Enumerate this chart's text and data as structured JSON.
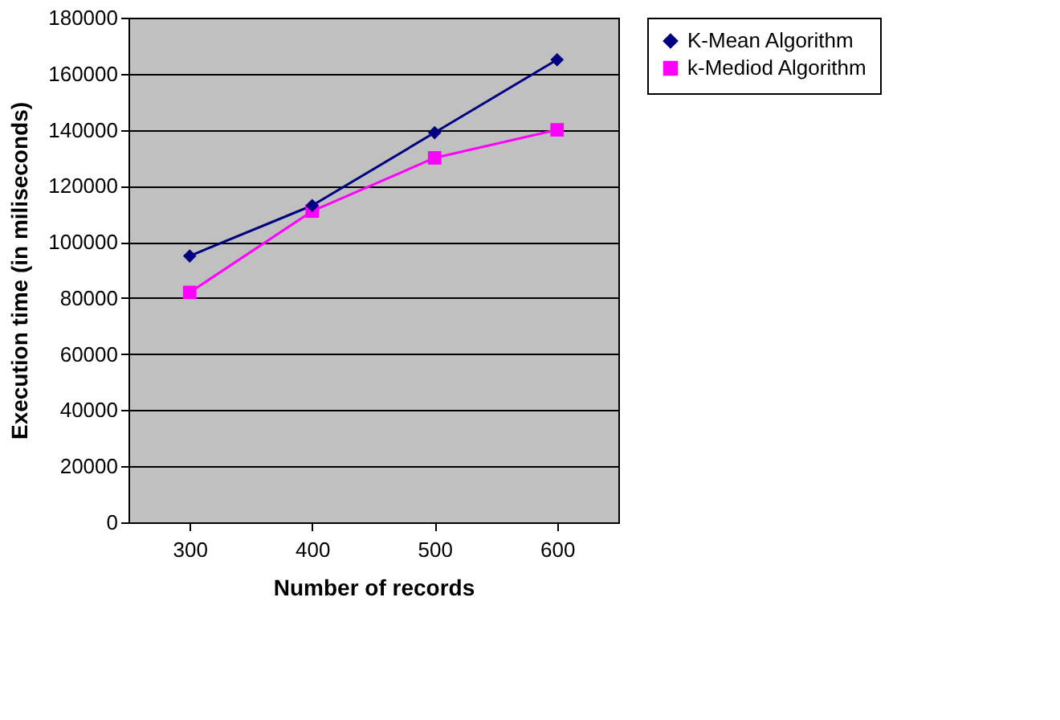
{
  "chart_data": {
    "type": "line",
    "xlabel": "Number of records",
    "ylabel": "Execution time (in miliseconds)",
    "categories": [
      "300",
      "400",
      "500",
      "600"
    ],
    "series": [
      {
        "name": "K-Mean Algorithm",
        "color": "#000080",
        "marker": "diamond",
        "values": [
          95000,
          113000,
          139000,
          165000
        ]
      },
      {
        "name": "k-Mediod Algorithm",
        "color": "#ff00ff",
        "marker": "square",
        "values": [
          82000,
          111000,
          130000,
          140000
        ]
      }
    ],
    "ylim": [
      0,
      180000
    ],
    "yticks": [
      0,
      20000,
      40000,
      60000,
      80000,
      100000,
      120000,
      140000,
      160000,
      180000
    ],
    "grid": "y",
    "legend": "right",
    "line_style": "solid"
  }
}
